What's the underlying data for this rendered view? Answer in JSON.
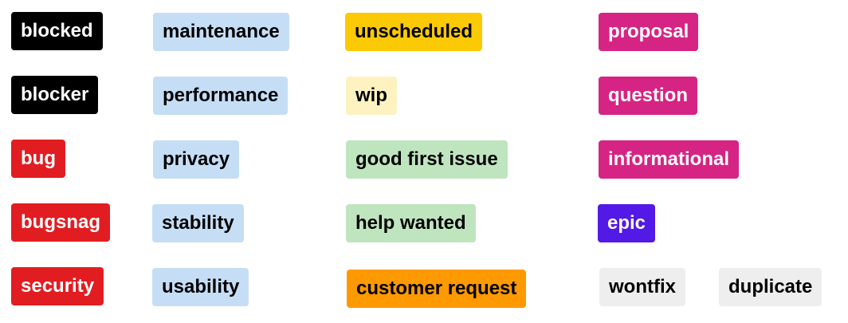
{
  "labels": [
    {
      "id": "blocked",
      "text": "blocked",
      "bg": "#000000",
      "fg": "#ffffff"
    },
    {
      "id": "blocker",
      "text": "blocker",
      "bg": "#000000",
      "fg": "#ffffff"
    },
    {
      "id": "bug",
      "text": "bug",
      "bg": "#e11d21",
      "fg": "#ffffff"
    },
    {
      "id": "bugsnag",
      "text": "bugsnag",
      "bg": "#e11d21",
      "fg": "#ffffff"
    },
    {
      "id": "security",
      "text": "security",
      "bg": "#e11d21",
      "fg": "#ffffff"
    },
    {
      "id": "maintenance",
      "text": "maintenance",
      "bg": "#c5def5",
      "fg": "#000000"
    },
    {
      "id": "performance",
      "text": "performance",
      "bg": "#c5def5",
      "fg": "#000000"
    },
    {
      "id": "privacy",
      "text": "privacy",
      "bg": "#c5def5",
      "fg": "#000000"
    },
    {
      "id": "stability",
      "text": "stability",
      "bg": "#c5def5",
      "fg": "#000000"
    },
    {
      "id": "usability",
      "text": "usability",
      "bg": "#c5def5",
      "fg": "#000000"
    },
    {
      "id": "unscheduled",
      "text": "unscheduled",
      "bg": "#fbca04",
      "fg": "#000000"
    },
    {
      "id": "wip",
      "text": "wip",
      "bg": "#fef2c0",
      "fg": "#000000"
    },
    {
      "id": "good-first-issue",
      "text": "good first issue",
      "bg": "#bfe5bf",
      "fg": "#000000"
    },
    {
      "id": "help-wanted",
      "text": "help wanted",
      "bg": "#bfe5bf",
      "fg": "#000000"
    },
    {
      "id": "customer-request",
      "text": "customer request",
      "bg": "#fe9900",
      "fg": "#000000"
    },
    {
      "id": "proposal",
      "text": "proposal",
      "bg": "#d62484",
      "fg": "#ffffff"
    },
    {
      "id": "question",
      "text": "question",
      "bg": "#d62484",
      "fg": "#ffffff"
    },
    {
      "id": "informational",
      "text": "informational",
      "bg": "#d62484",
      "fg": "#ffffff"
    },
    {
      "id": "epic",
      "text": "epic",
      "bg": "#5319e7",
      "fg": "#ffffff"
    },
    {
      "id": "wontfix",
      "text": "wontfix",
      "bg": "#eeeeee",
      "fg": "#000000"
    },
    {
      "id": "duplicate",
      "text": "duplicate",
      "bg": "#eeeeee",
      "fg": "#000000"
    }
  ]
}
